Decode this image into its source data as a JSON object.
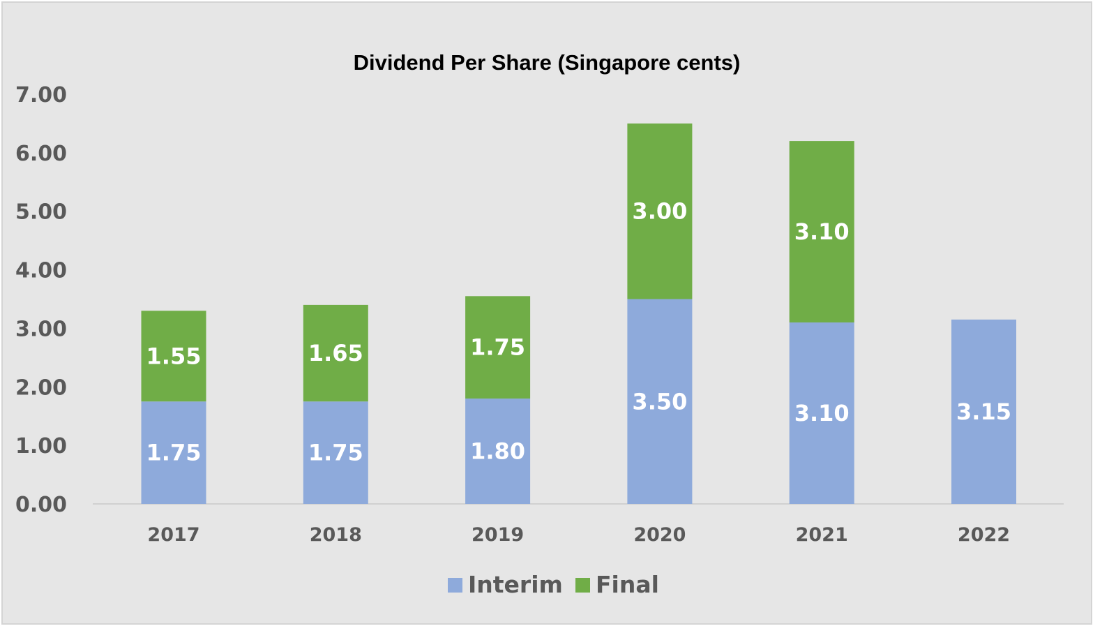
{
  "chart_data": {
    "type": "bar",
    "stacked": true,
    "title": "Dividend Per Share (Singapore cents)",
    "categories": [
      "2017",
      "2018",
      "2019",
      "2020",
      "2021",
      "2022"
    ],
    "series": [
      {
        "name": "Interim",
        "color": "#8eaadb",
        "values": [
          1.75,
          1.75,
          1.8,
          3.5,
          3.1,
          3.15
        ]
      },
      {
        "name": "Final",
        "color": "#70ad47",
        "values": [
          1.55,
          1.65,
          1.75,
          3.0,
          3.1,
          null
        ]
      }
    ],
    "ylim": [
      0,
      7
    ],
    "yticks": [
      "0.00",
      "1.00",
      "2.00",
      "3.00",
      "4.00",
      "5.00",
      "6.00",
      "7.00"
    ],
    "xlabel": "",
    "ylabel": "",
    "grid": false,
    "legend_position": "bottom",
    "data_labels": true
  }
}
